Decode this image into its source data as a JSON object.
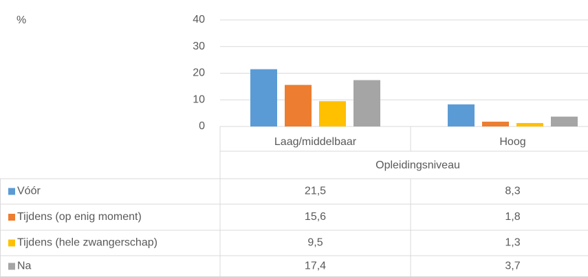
{
  "chart_data": {
    "type": "bar",
    "ylabel": "%",
    "xlabel": "Opleidingsniveau",
    "categories": [
      "Laag/middelbaar",
      "Hoog"
    ],
    "series": [
      {
        "name": "Vóór",
        "color": "#5b9bd5",
        "values": [
          21.5,
          8.3
        ],
        "value_labels": [
          "21,5",
          "8,3"
        ]
      },
      {
        "name": "Tijdens (op enig moment)",
        "color": "#ed7d31",
        "values": [
          15.6,
          1.8
        ],
        "value_labels": [
          "15,6",
          "1,8"
        ]
      },
      {
        "name": "Tijdens (hele zwangerschap)",
        "color": "#ffc000",
        "values": [
          9.5,
          1.3
        ],
        "value_labels": [
          "9,5",
          "1,3"
        ]
      },
      {
        "name": "Na",
        "color": "#a5a5a5",
        "values": [
          17.4,
          3.7
        ],
        "value_labels": [
          "17,4",
          "3,7"
        ]
      }
    ],
    "ylim": [
      0,
      40
    ],
    "yticks": [
      0,
      10,
      20,
      30,
      40
    ],
    "grid": true
  }
}
